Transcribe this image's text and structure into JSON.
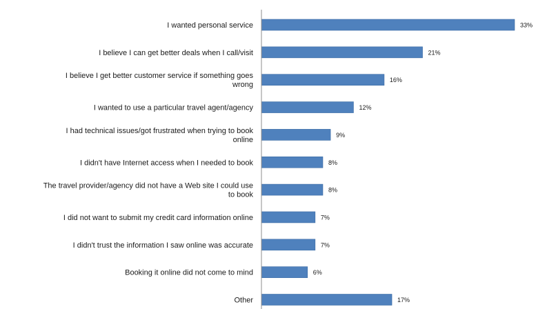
{
  "chart_data": {
    "type": "bar",
    "orientation": "horizontal",
    "categories": [
      [
        "I wanted personal service"
      ],
      [
        "I believe I can get better deals when I call/visit"
      ],
      [
        "I believe I get better customer service if something goes",
        "wrong"
      ],
      [
        "I wanted to use a particular travel agent/agency"
      ],
      [
        "I had technical issues/got frustrated when trying to book",
        "online"
      ],
      [
        "I didn't have Internet access when I needed to book"
      ],
      [
        "The travel provider/agency did not have a Web site I could use",
        "to book"
      ],
      [
        "I did not want to submit my credit card information online"
      ],
      [
        "I didn't trust the information I saw online was accurate"
      ],
      [
        "Booking it online did not come to mind"
      ],
      [
        "Other"
      ]
    ],
    "values": [
      33,
      21,
      16,
      12,
      9,
      8,
      8,
      7,
      7,
      6,
      17
    ],
    "value_labels": [
      "33%",
      "21%",
      "16%",
      "12%",
      "9%",
      "8%",
      "8%",
      "7%",
      "7%",
      "6%",
      "17%"
    ],
    "xlim": [
      0,
      35
    ],
    "grid": false,
    "legend": "none",
    "colors": {
      "bar": "#4f81bd",
      "bar_stroke": "#3a6aa3",
      "axis": "#8c8c8c"
    }
  }
}
